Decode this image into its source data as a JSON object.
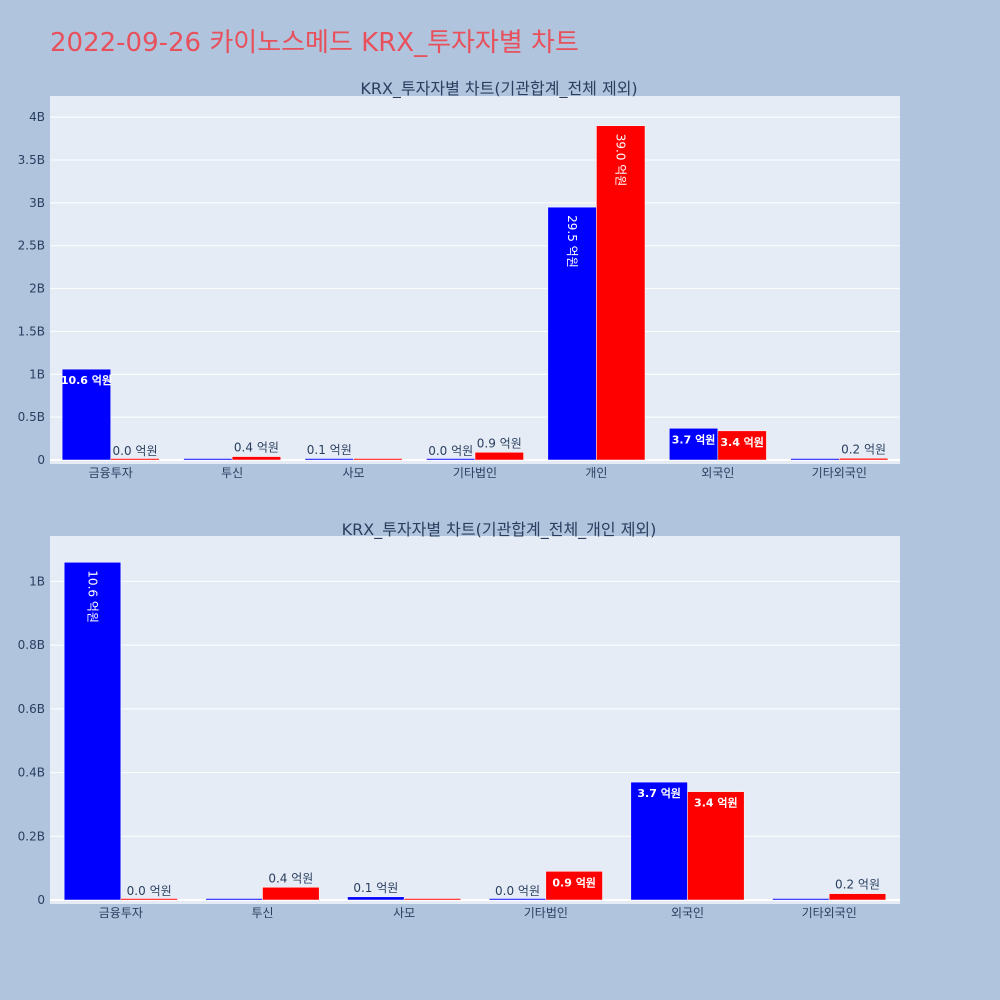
{
  "page_title": "2022-09-26 카이노스메드 KRX_투자자별 차트",
  "colors": {
    "buy": "#0000ff",
    "sell": "#ff0000",
    "background": "#b0c4de",
    "plot_bg": "#e5ecf6",
    "title": "#e8505b"
  },
  "chart_data": [
    {
      "type": "bar",
      "title": "KRX_투자자별 차트(기관합계_전체 제외)",
      "categories": [
        "금융투자",
        "투신",
        "사모",
        "기타법인",
        "개인",
        "외국인",
        "기타외국인"
      ],
      "series": [
        {
          "color": "#0000ff",
          "values": [
            1060000000,
            0,
            10000000,
            0,
            2950000000,
            370000000,
            0
          ],
          "labels": [
            "10.6 억원",
            "",
            "0.1 억원",
            "0.0 억원",
            "29.5 억원",
            "3.7 억원",
            ""
          ]
        },
        {
          "color": "#ff0000",
          "values": [
            0,
            40000000,
            0,
            90000000,
            3900000000,
            340000000,
            20000000
          ],
          "labels": [
            "0.0 억원",
            "0.4 억원",
            "",
            "0.9 억원",
            "39.0 억원",
            "3.4 억원",
            "0.2 억원"
          ]
        }
      ],
      "ylim": [
        0,
        4200000000
      ],
      "yticks": [
        0,
        500000000,
        1000000000,
        1500000000,
        2000000000,
        2500000000,
        3000000000,
        3500000000,
        4000000000
      ],
      "ytick_labels": [
        "0",
        "0.5B",
        "1B",
        "1.5B",
        "2B",
        "2.5B",
        "3B",
        "3.5B",
        "4B"
      ],
      "grid": true
    },
    {
      "type": "bar",
      "title": "KRX_투자자별 차트(기관합계_전체_개인 제외)",
      "categories": [
        "금융투자",
        "투신",
        "사모",
        "기타법인",
        "외국인",
        "기타외국인"
      ],
      "series": [
        {
          "color": "#0000ff",
          "values": [
            1060000000,
            0,
            10000000,
            0,
            370000000,
            0
          ],
          "labels": [
            "10.6 억원",
            "",
            "0.1 억원",
            "0.0 억원",
            "3.7 억원",
            ""
          ]
        },
        {
          "color": "#ff0000",
          "values": [
            0,
            40000000,
            0,
            90000000,
            340000000,
            20000000
          ],
          "labels": [
            "0.0 억원",
            "0.4 억원",
            "",
            "0.9 억원",
            "3.4 억원",
            "0.2 억원"
          ]
        }
      ],
      "ylim": [
        0,
        1130000000
      ],
      "yticks": [
        0,
        200000000,
        400000000,
        600000000,
        800000000,
        1000000000
      ],
      "ytick_labels": [
        "0",
        "0.2B",
        "0.4B",
        "0.6B",
        "0.8B",
        "1B"
      ],
      "grid": true
    }
  ]
}
